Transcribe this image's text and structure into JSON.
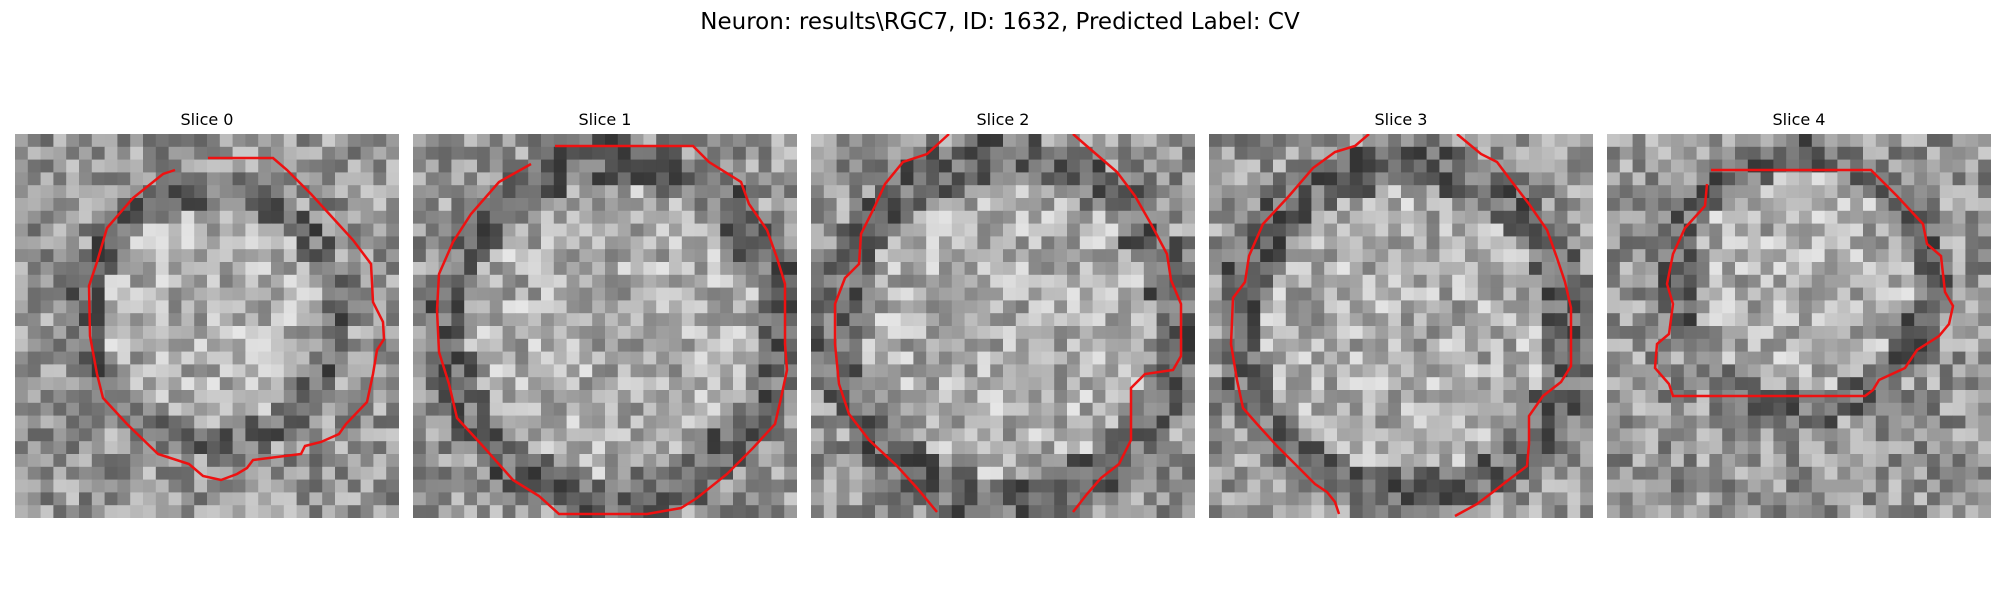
{
  "figure": {
    "title": "Neuron: results\\RGC7, ID: 1632, Predicted Label: CV"
  },
  "panels": [
    {
      "title": "Slice 0"
    },
    {
      "title": "Slice 1"
    },
    {
      "title": "Slice 2"
    },
    {
      "title": "Slice 3"
    },
    {
      "title": "Slice 4"
    }
  ],
  "colors": {
    "contour": "#ee1111",
    "background": "#ffffff"
  }
}
